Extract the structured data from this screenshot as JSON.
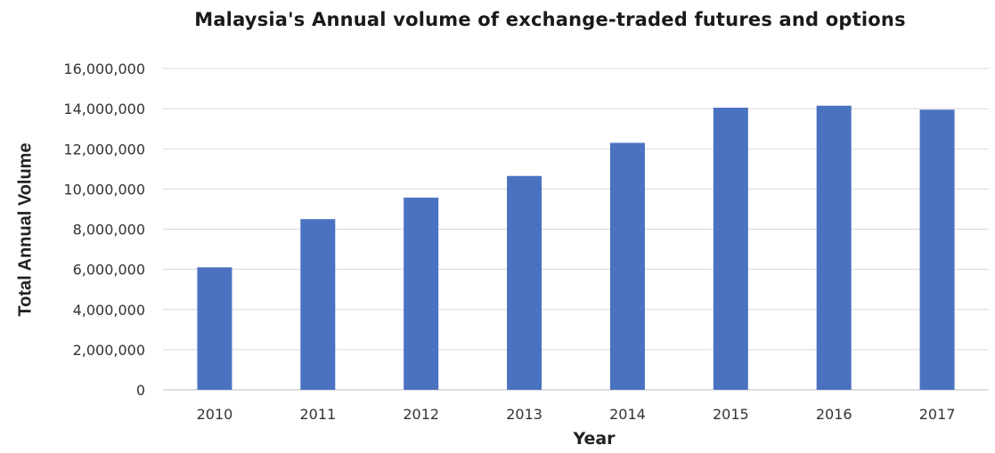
{
  "chart_data": {
    "type": "bar",
    "title": "Malaysia's Annual volume of exchange-traded futures and options",
    "xlabel": "Year",
    "ylabel": "Total Annual Volume",
    "categories": [
      "2010",
      "2011",
      "2012",
      "2013",
      "2014",
      "2015",
      "2016",
      "2017"
    ],
    "values": [
      6100000,
      8500000,
      9570000,
      10650000,
      12300000,
      14050000,
      14150000,
      13950000
    ],
    "ylim": [
      0,
      16000000
    ],
    "yticks": [
      0,
      2000000,
      4000000,
      6000000,
      8000000,
      10000000,
      12000000,
      14000000,
      16000000
    ],
    "ytick_labels": [
      "0",
      "2,000,000",
      "4,000,000",
      "6,000,000",
      "8,000,000",
      "10,000,000",
      "12,000,000",
      "14,000,000",
      "16,000,000"
    ],
    "grid": true,
    "legend": "none",
    "colors": {
      "bar": "#4a72c0",
      "grid": "#d9d9d9",
      "axis": "#bfbfbf"
    }
  }
}
